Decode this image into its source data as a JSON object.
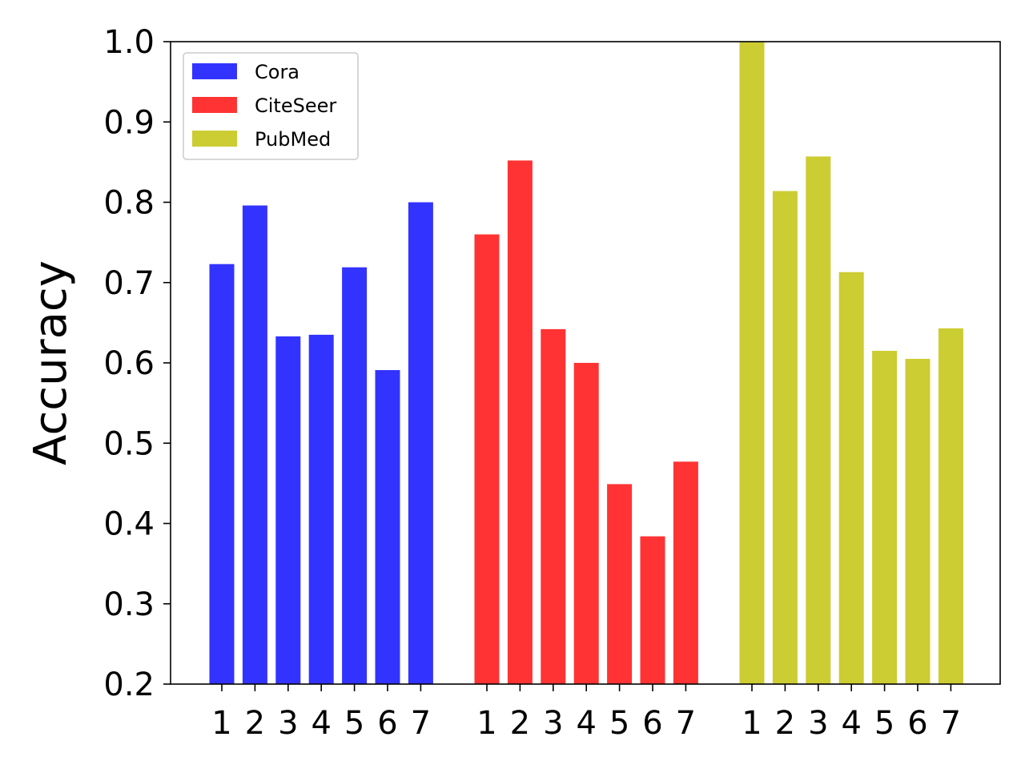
{
  "chart_data": {
    "type": "bar",
    "xlabel": "",
    "ylabel": "Accuracy",
    "ylim": [
      0.2,
      1.0
    ],
    "yticks": [
      "0.2",
      "0.3",
      "0.4",
      "0.5",
      "0.6",
      "0.7",
      "0.8",
      "0.9",
      "1.0"
    ],
    "categories": [
      "1",
      "2",
      "3",
      "4",
      "5",
      "6",
      "7"
    ],
    "grid": false,
    "legend_position": "top-left",
    "series": [
      {
        "name": "Cora",
        "color": "#3333ff",
        "values": [
          0.723,
          0.796,
          0.633,
          0.635,
          0.719,
          0.591,
          0.8
        ]
      },
      {
        "name": "CiteSeer",
        "color": "#ff3333",
        "values": [
          0.76,
          0.852,
          0.642,
          0.6,
          0.449,
          0.384,
          0.477
        ]
      },
      {
        "name": "PubMed",
        "color": "#cccc33",
        "values": [
          1.0,
          0.814,
          0.857,
          0.713,
          0.615,
          0.605,
          0.643
        ]
      }
    ]
  }
}
